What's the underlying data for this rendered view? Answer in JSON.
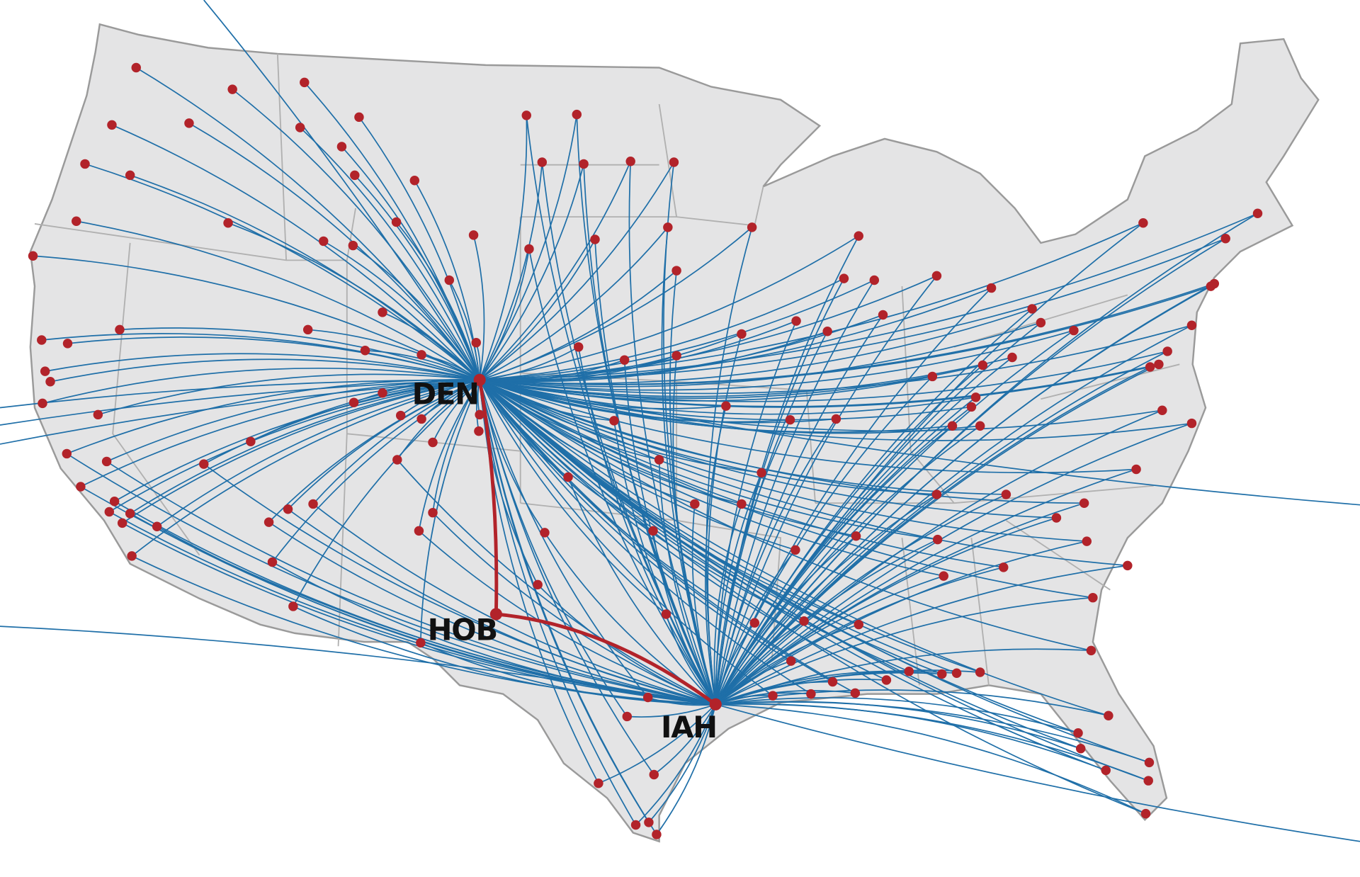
{
  "hubs": [
    {
      "label": "DEN"
    },
    {
      "label": "HOB"
    },
    {
      "label": "IAH"
    }
  ]
}
